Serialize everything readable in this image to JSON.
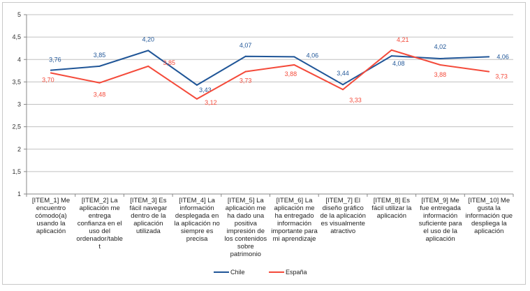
{
  "chart_data": {
    "type": "line",
    "categories": [
      "[ITEM_1] Me encuentro cómodo(a) usando la aplicación",
      "[ITEM_2]  La aplicación me entrega confianza en el uso del ordenador/tablet",
      "[ITEM_3] Es fácil navegar dentro de la aplicación utilizada",
      "[ITEM_4] La información desplegada en la aplicación no siempre es precisa",
      "[ITEM_5] La aplicación me ha dado una positiva impresión de los contenidos sobre patrimonio",
      "[ITEM_6] La aplicación me ha entregado información importante para mi aprendizaje",
      "[ITEM_7] El diseño gráfico de la aplicación es visualmente atractivo",
      "[ITEM_8] Es fácil utilizar la aplicación",
      "[ITEM_9] Me fue entregada información suficiente para el uso de la aplicación",
      "[ITEM_10] Me gusta la información que despliega la aplicación"
    ],
    "series": [
      {
        "name": "Chile",
        "color": "#1f5597",
        "values": [
          3.76,
          3.85,
          4.2,
          3.43,
          4.07,
          4.06,
          3.44,
          4.08,
          4.02,
          4.06
        ],
        "labels": [
          "3,76",
          "3,85",
          "4,20",
          "3,43",
          "4,07",
          "4,06",
          "3,44",
          "4,08",
          "4,02",
          "4,06"
        ]
      },
      {
        "name": "España",
        "color": "#f44a3a",
        "values": [
          3.7,
          3.48,
          3.85,
          3.12,
          3.73,
          3.88,
          3.33,
          4.21,
          3.88,
          3.73
        ],
        "labels": [
          "3,70",
          "3,48",
          "3,85",
          "3,12",
          "3,73",
          "3,88",
          "3,33",
          "4,21",
          "3,88",
          "3,73"
        ]
      }
    ],
    "ylim": [
      1,
      5
    ],
    "yticks": [
      "1",
      "1,5",
      "2",
      "2,5",
      "3",
      "3,5",
      "4",
      "4,5",
      "5"
    ],
    "grid": true,
    "legend": "bottom"
  }
}
